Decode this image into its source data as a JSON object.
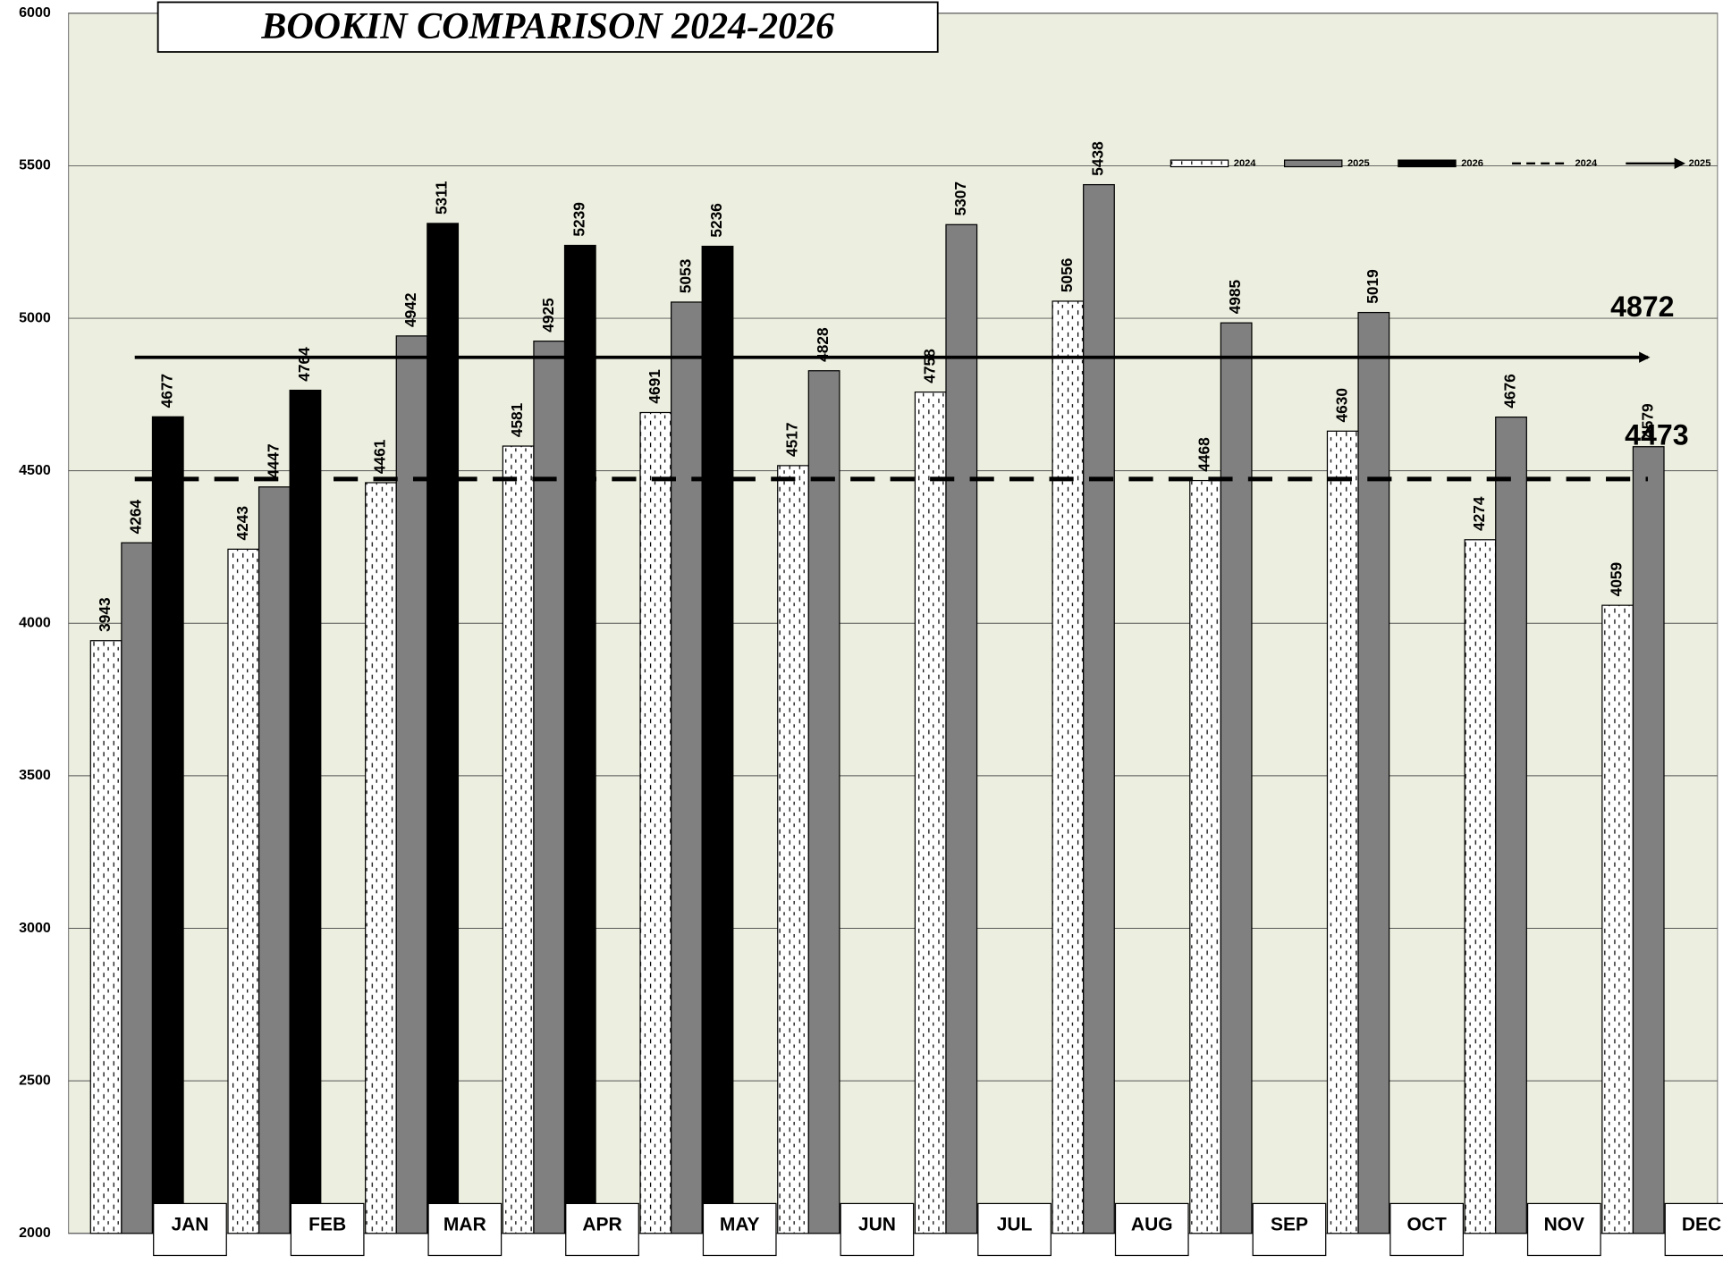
{
  "chart_data": {
    "type": "bar",
    "title": "BOOKIN COMPARISON 2024-2026",
    "categories": [
      "JAN",
      "FEB",
      "MAR",
      "APR",
      "MAY",
      "JUN",
      "JUL",
      "AUG",
      "SEP",
      "OCT",
      "NOV",
      "DEC"
    ],
    "series": [
      {
        "name": "2024",
        "color": "#ffffff",
        "pattern": "dashed",
        "values": [
          3943,
          4243,
          4461,
          4581,
          4691,
          4517,
          4758,
          5056,
          4468,
          4630,
          4274,
          4059
        ]
      },
      {
        "name": "2025",
        "color": "#808080",
        "values": [
          4264,
          4447,
          4942,
          4925,
          5053,
          4828,
          5307,
          5438,
          4985,
          5019,
          4676,
          4579
        ]
      },
      {
        "name": "2026",
        "color": "#000000",
        "values": [
          4677,
          4764,
          5311,
          5239,
          5236,
          null,
          null,
          null,
          null,
          null,
          null,
          null
        ]
      }
    ],
    "reference_lines": [
      {
        "name": "2024",
        "value": 4473,
        "style": "dashed"
      },
      {
        "name": "2025",
        "value": 4872,
        "style": "arrow"
      }
    ],
    "ylim": [
      2000,
      6000
    ],
    "yticks": [
      2000,
      2500,
      3000,
      3500,
      4000,
      4500,
      5000,
      5500,
      6000
    ],
    "grid": true,
    "legend": "top-right"
  }
}
